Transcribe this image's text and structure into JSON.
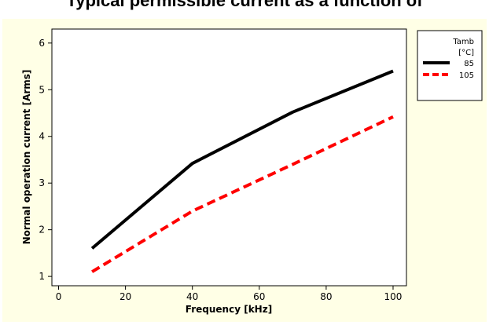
{
  "chart_data": {
    "type": "line",
    "title": "Typical permissible current as a function of",
    "xlabel": "Frequency [kHz]",
    "ylabel": "Normal operation current [Arms]",
    "xlim": [
      -2,
      104
    ],
    "ylim": [
      0.8,
      6.3
    ],
    "xticks": [
      0,
      20,
      40,
      60,
      80,
      100
    ],
    "yticks": [
      1,
      2,
      3,
      4,
      5,
      6
    ],
    "grid": false,
    "legend_title": [
      "Tamb",
      "[°C]"
    ],
    "legend_position": "right",
    "series": [
      {
        "name": "85",
        "x": [
          10,
          40,
          70,
          100
        ],
        "y": [
          1.6,
          3.42,
          4.52,
          5.4
        ],
        "color": "#000000",
        "style": "solid"
      },
      {
        "name": "105",
        "x": [
          10,
          40,
          70,
          100
        ],
        "y": [
          1.1,
          2.4,
          3.4,
          4.42
        ],
        "color": "#ff0000",
        "style": "dashed"
      }
    ]
  },
  "colors": {
    "frame_background": "#ffffe6",
    "plot_background": "#ffffff"
  }
}
